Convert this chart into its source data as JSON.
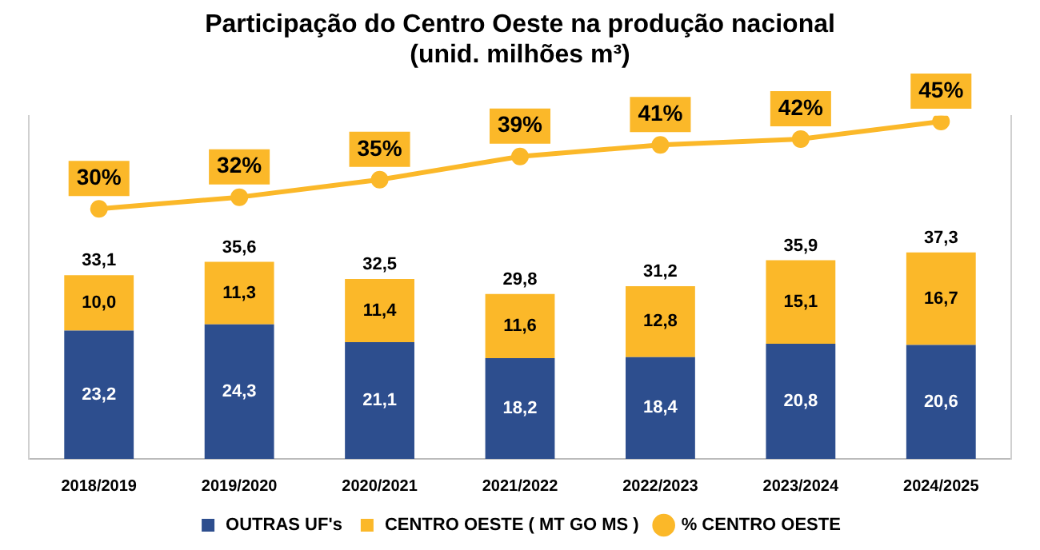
{
  "chart_data": {
    "type": "bar",
    "title": "Participação do Centro Oeste na produção nacional",
    "subtitle": "(unid. milhões m³)",
    "categories": [
      "2018/2019",
      "2019/2020",
      "2020/2021",
      "2021/2022",
      "2022/2023",
      "2023/2024",
      "2024/2025"
    ],
    "stacked": true,
    "ylim": [
      0,
      62
    ],
    "y2lim": [
      -13,
      46
    ],
    "tick_labels": "x",
    "grid": false,
    "legend": "bottom",
    "series": [
      {
        "name": "OUTRAS UF's",
        "color": "#2d4e8e",
        "values": [
          23.2,
          24.3,
          21.1,
          18.2,
          18.4,
          20.8,
          20.6
        ],
        "value_labels": [
          "23,2",
          "24,3",
          "21,1",
          "18,2",
          "18,4",
          "20,8",
          "20,6"
        ]
      },
      {
        "name": "CENTRO OESTE ( MT GO MS )",
        "color": "#fbb829",
        "values": [
          10.0,
          11.3,
          11.4,
          11.6,
          12.8,
          15.1,
          16.7
        ],
        "value_labels": [
          "10,0",
          "11,3",
          "11,4",
          "11,6",
          "12,8",
          "15,1",
          "16,7"
        ]
      },
      {
        "name": "% CENTRO OESTE",
        "type": "line",
        "axis": "y2",
        "color": "#fbb829",
        "marker": "circle",
        "values": [
          30,
          32,
          35,
          39,
          41,
          42,
          45
        ],
        "value_labels": [
          "30%",
          "32%",
          "35%",
          "39%",
          "41%",
          "42%",
          "45%"
        ]
      }
    ],
    "totals": [
      "33,1",
      "35,6",
      "32,5",
      "29,8",
      "31,2",
      "35,9",
      "37,3"
    ]
  }
}
